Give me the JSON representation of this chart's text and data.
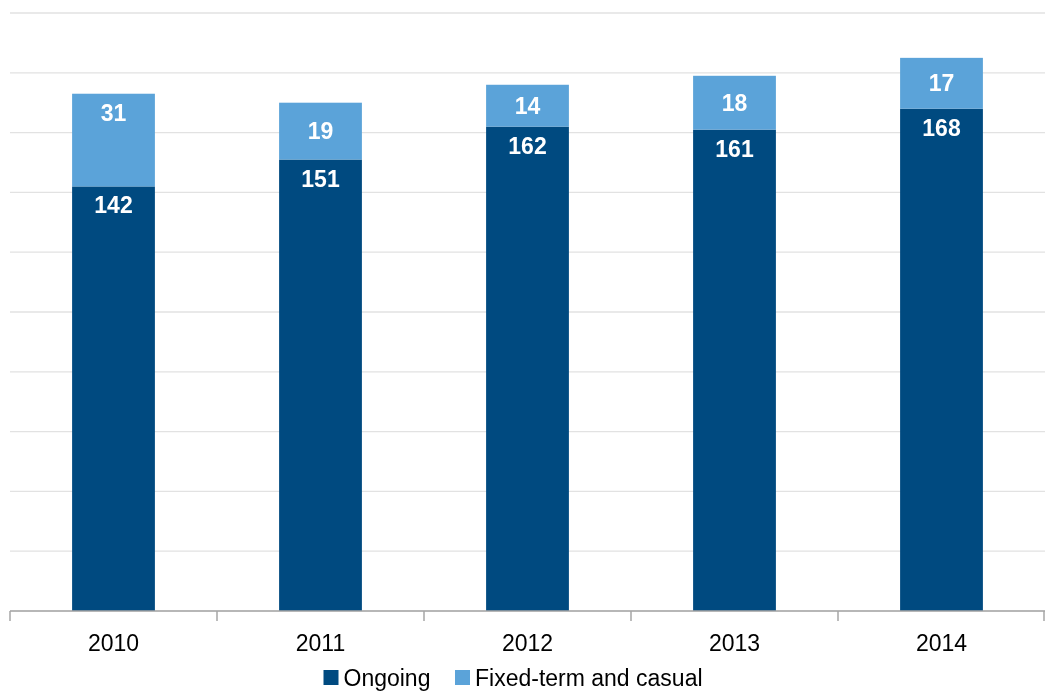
{
  "chart_data": {
    "type": "bar",
    "stacked": true,
    "categories": [
      "2010",
      "2011",
      "2012",
      "2013",
      "2014"
    ],
    "series": [
      {
        "name": "Ongoing",
        "color": "#004a80",
        "values": [
          142,
          151,
          162,
          161,
          168
        ]
      },
      {
        "name": "Fixed-term and casual",
        "color": "#5ba3d9",
        "values": [
          31,
          19,
          14,
          18,
          17
        ]
      }
    ],
    "ylim": [
      0,
      200
    ],
    "yticks": [
      {
        "value": 0,
        "label": null
      },
      {
        "value": 20,
        "label": null
      },
      {
        "value": 40,
        "label": null
      },
      {
        "value": 60,
        "label": null
      },
      {
        "value": 80,
        "label": null
      },
      {
        "value": 100,
        "label": null
      },
      {
        "value": 120,
        "label": null
      },
      {
        "value": 140,
        "label": null
      },
      {
        "value": 160,
        "label": null
      },
      {
        "value": 180,
        "label": null
      },
      {
        "value": 200,
        "label": null
      }
    ],
    "grid": "y",
    "tick_labels": "x",
    "data_labels": true,
    "legend": "bottom"
  }
}
